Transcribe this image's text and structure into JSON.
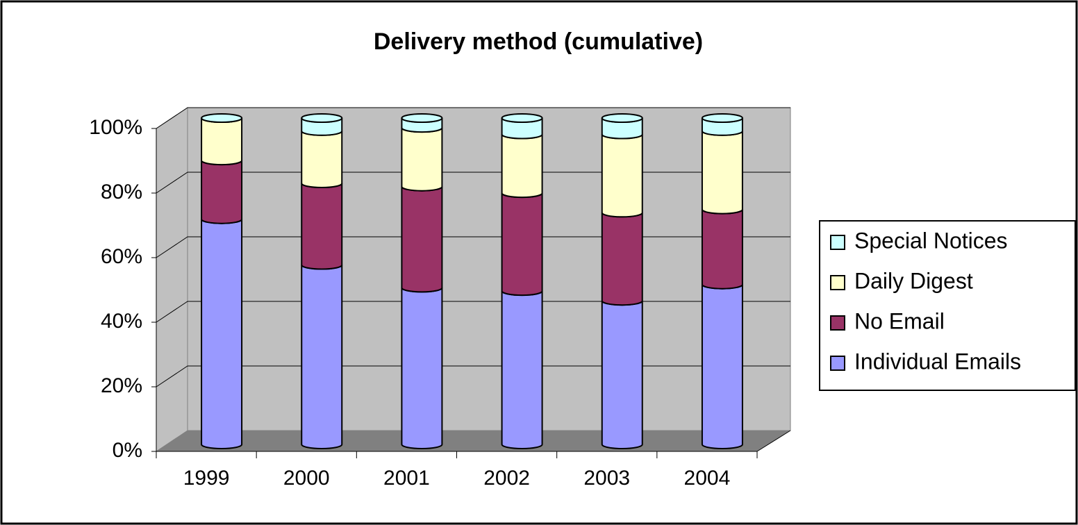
{
  "chart_data": {
    "type": "bar",
    "stacked": true,
    "title": "Delivery method (cumulative)",
    "categories": [
      "1999",
      "2000",
      "2001",
      "2002",
      "2003",
      "2004"
    ],
    "series": [
      {
        "name": "Individual Emails",
        "color": "#9999ff",
        "values": [
          69,
          55,
          48,
          47,
          44,
          49
        ]
      },
      {
        "name": "No Email",
        "color": "#993366",
        "values": [
          18,
          25,
          31,
          30,
          27,
          23
        ]
      },
      {
        "name": "Daily Digest",
        "color": "#ffffcc",
        "values": [
          13,
          16,
          18,
          18,
          24,
          24
        ]
      },
      {
        "name": "Special Notices",
        "color": "#ccffff",
        "values": [
          0,
          4,
          3,
          5,
          5,
          4
        ]
      }
    ],
    "ylim": [
      0,
      100
    ],
    "yticks": [
      {
        "value": 0,
        "label": "0%"
      },
      {
        "value": 20,
        "label": "20%"
      },
      {
        "value": 40,
        "label": "40%"
      },
      {
        "value": 60,
        "label": "60%"
      },
      {
        "value": 80,
        "label": "80%"
      },
      {
        "value": 100,
        "label": "100%"
      }
    ],
    "grid": true,
    "legend": "right"
  }
}
